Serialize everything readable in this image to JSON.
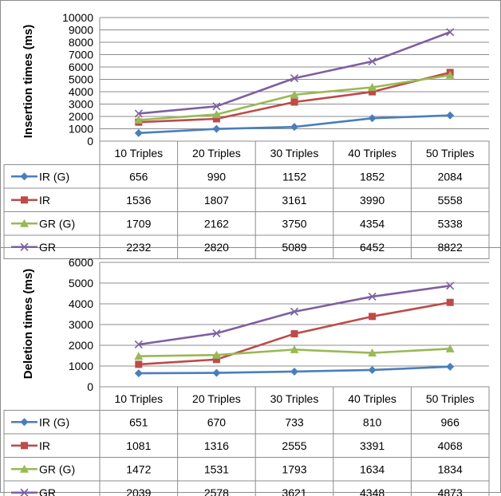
{
  "chart_data": [
    {
      "type": "line",
      "ylabel": "Insertion times (ms)",
      "ylim": [
        0,
        10000
      ],
      "ytick_step": 1000,
      "yticks": [
        "0",
        "1000",
        "2000",
        "3000",
        "4000",
        "5000",
        "6000",
        "7000",
        "8000",
        "9000",
        "10000"
      ],
      "categories": [
        "10 Triples",
        "20 Triples",
        "30 Triples",
        "40 Triples",
        "50 Triples"
      ],
      "grid": true,
      "legend": "table-left",
      "series": [
        {
          "name": "IR (G)",
          "color": "#4a7ebb",
          "marker": "diamond",
          "values": [
            656,
            990,
            1152,
            1852,
            2084
          ]
        },
        {
          "name": "IR",
          "color": "#be4b48",
          "marker": "square",
          "values": [
            1536,
            1807,
            3161,
            3990,
            5558
          ]
        },
        {
          "name": "GR (G)",
          "color": "#98b954",
          "marker": "triangle",
          "values": [
            1709,
            2162,
            3750,
            4354,
            5338
          ]
        },
        {
          "name": "GR",
          "color": "#7d60a0",
          "marker": "x",
          "values": [
            2232,
            2820,
            5089,
            6452,
            8822
          ]
        }
      ]
    },
    {
      "type": "line",
      "ylabel": "Deletion times  (ms)",
      "ylim": [
        0,
        6000
      ],
      "ytick_step": 1000,
      "yticks": [
        "0",
        "1000",
        "2000",
        "3000",
        "4000",
        "5000",
        "6000"
      ],
      "categories": [
        "10 Triples",
        "20 Triples",
        "30 Triples",
        "40 Triples",
        "50 Triples"
      ],
      "grid": true,
      "legend": "table-left",
      "series": [
        {
          "name": "IR (G)",
          "color": "#4a7ebb",
          "marker": "diamond",
          "values": [
            651,
            670,
            733,
            810,
            966
          ]
        },
        {
          "name": "IR",
          "color": "#be4b48",
          "marker": "square",
          "values": [
            1081,
            1316,
            2555,
            3391,
            4068
          ]
        },
        {
          "name": "GR (G)",
          "color": "#98b954",
          "marker": "triangle",
          "values": [
            1472,
            1531,
            1793,
            1634,
            1834
          ]
        },
        {
          "name": "GR",
          "color": "#7d60a0",
          "marker": "x",
          "values": [
            2039,
            2578,
            3621,
            4348,
            4873
          ]
        }
      ]
    }
  ]
}
